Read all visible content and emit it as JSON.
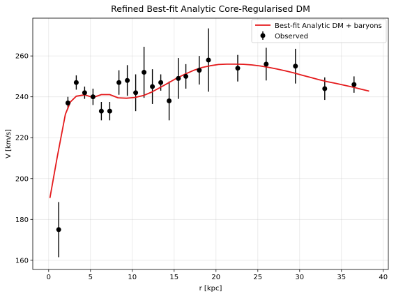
{
  "chart_data": {
    "type": "line",
    "title": "Refined Best-fit Analytic Core-Regularised DM",
    "xlabel": "r [kpc]",
    "ylabel": "V [km/s]",
    "xlim": [
      -1.9,
      40.6
    ],
    "ylim": [
      155.5,
      278.5
    ],
    "xticks": [
      0,
      5,
      10,
      15,
      20,
      25,
      30,
      35,
      40
    ],
    "yticks": [
      160,
      180,
      200,
      220,
      240,
      260
    ],
    "grid": true,
    "legend_position": "top-right",
    "series": [
      {
        "name": "Best-fit Analytic DM + baryons",
        "kind": "line",
        "color": "#e41a1c",
        "x": [
          0.15,
          1.0,
          2.0,
          2.6,
          3.3,
          4.3,
          5.3,
          6.3,
          7.3,
          8.3,
          9.3,
          10.3,
          11.3,
          12.3,
          13.3,
          14.3,
          15.3,
          16.3,
          17.3,
          18.3,
          19.3,
          20.3,
          21.3,
          22.3,
          23.3,
          24.3,
          25.3,
          26.3,
          27.3,
          28.3,
          29.3,
          30.3,
          31.3,
          32.3,
          33.3,
          34.3,
          35.3,
          36.3,
          37.3,
          38.3
        ],
        "y": [
          190.5,
          210,
          231.5,
          237.5,
          240.3,
          241,
          239.7,
          241.1,
          241.1,
          239.5,
          239.3,
          239.7,
          240.6,
          242.3,
          244.5,
          246.8,
          249.1,
          251.1,
          252.9,
          254.3,
          255.2,
          255.8,
          256,
          256,
          255.9,
          255.6,
          255.1,
          254.4,
          253.6,
          252.7,
          251.7,
          250.6,
          249.5,
          248.4,
          247.4,
          246.6,
          245.7,
          244.8,
          243.8,
          242.8
        ]
      },
      {
        "name": "Observed",
        "kind": "errorbar",
        "color": "#000000",
        "points": [
          {
            "x": 1.2,
            "y": 175,
            "err": 13.5
          },
          {
            "x": 2.3,
            "y": 237,
            "err": 3
          },
          {
            "x": 3.3,
            "y": 247,
            "err": 3.5
          },
          {
            "x": 4.3,
            "y": 242,
            "err": 3
          },
          {
            "x": 5.3,
            "y": 240,
            "err": 4
          },
          {
            "x": 6.3,
            "y": 233,
            "err": 4.5
          },
          {
            "x": 7.3,
            "y": 233,
            "err": 4.5
          },
          {
            "x": 8.4,
            "y": 247,
            "err": 6
          },
          {
            "x": 9.4,
            "y": 248,
            "err": 7.5
          },
          {
            "x": 10.4,
            "y": 242,
            "err": 9
          },
          {
            "x": 11.4,
            "y": 252,
            "err": 12.5
          },
          {
            "x": 12.4,
            "y": 245,
            "err": 8.5
          },
          {
            "x": 13.4,
            "y": 247,
            "err": 4
          },
          {
            "x": 14.4,
            "y": 238,
            "err": 9.5
          },
          {
            "x": 15.5,
            "y": 249,
            "err": 10
          },
          {
            "x": 16.4,
            "y": 250,
            "err": 6
          },
          {
            "x": 18.0,
            "y": 253,
            "err": 7
          },
          {
            "x": 19.1,
            "y": 258,
            "err": 15.5
          },
          {
            "x": 22.6,
            "y": 254,
            "err": 6.5
          },
          {
            "x": 26.0,
            "y": 256,
            "err": 8
          },
          {
            "x": 29.5,
            "y": 255,
            "err": 8.5
          },
          {
            "x": 33.0,
            "y": 244,
            "err": 5.5
          },
          {
            "x": 36.5,
            "y": 246,
            "err": 4
          }
        ]
      }
    ]
  }
}
